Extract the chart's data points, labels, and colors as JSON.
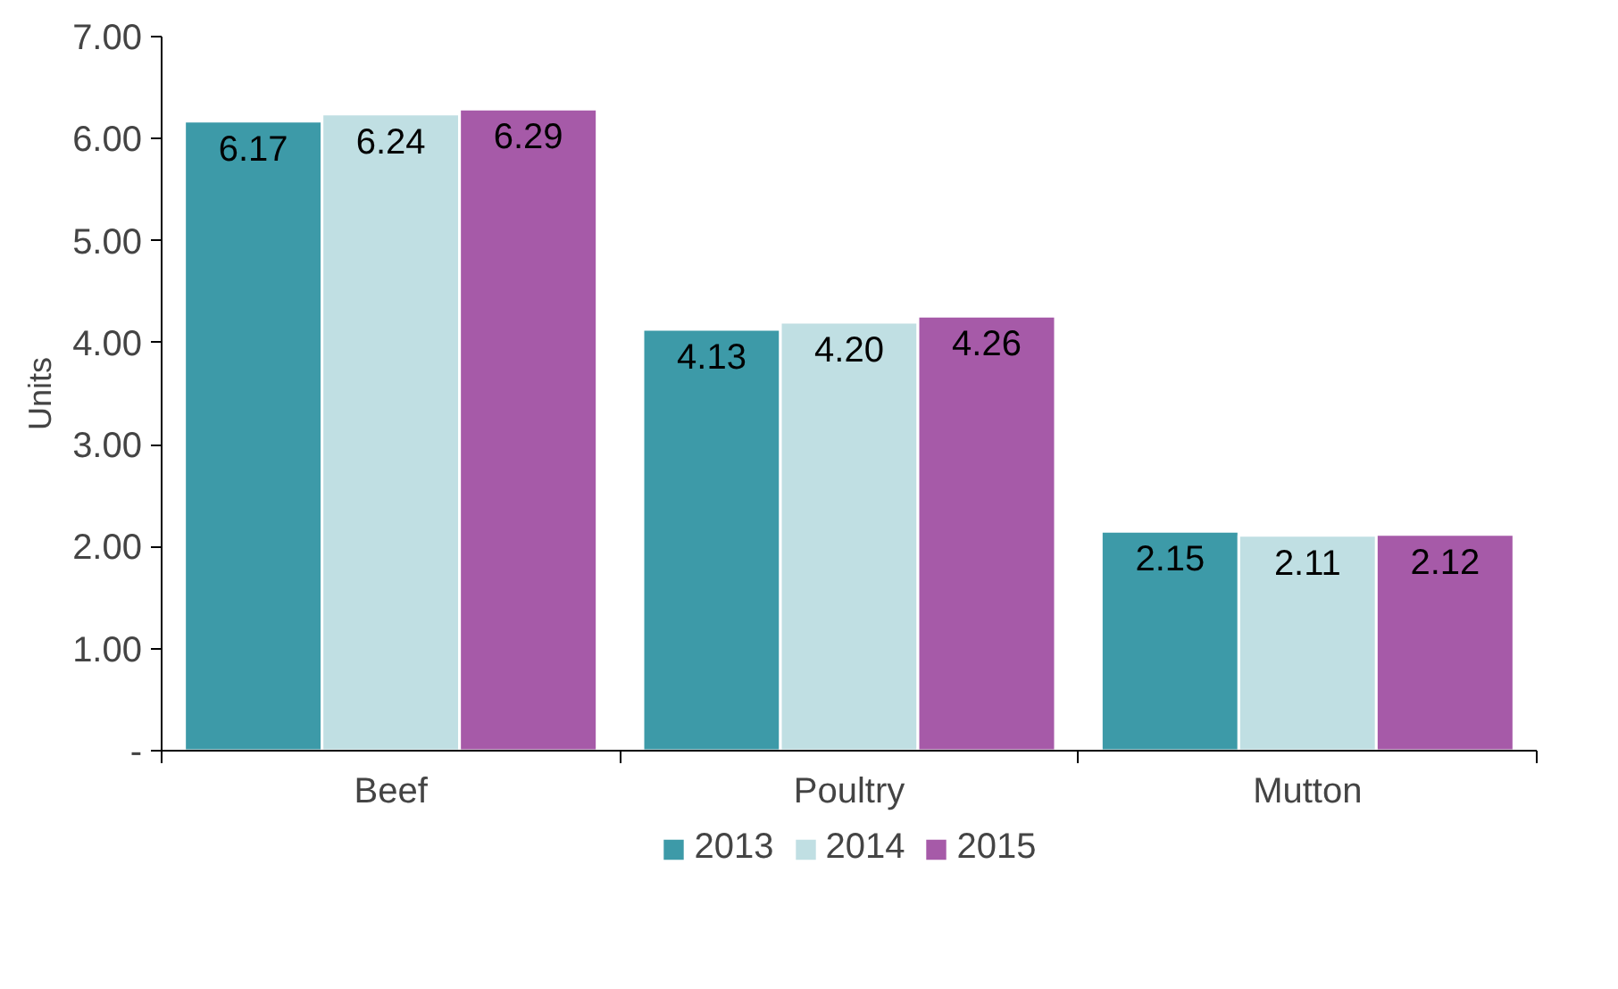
{
  "chart_data": {
    "type": "bar",
    "ylabel": "Units",
    "categories": [
      "Beef",
      "Poultry",
      "Mutton"
    ],
    "series": [
      {
        "name": "2013",
        "color": "#3d9aa8",
        "values": [
          6.17,
          4.13,
          2.15
        ],
        "value_labels": [
          "6.17",
          "4.13",
          "2.15"
        ]
      },
      {
        "name": "2014",
        "color": "#c0dfe3",
        "values": [
          6.24,
          4.2,
          2.11
        ],
        "value_labels": [
          "6.24",
          "4.20",
          "2.11"
        ]
      },
      {
        "name": "2015",
        "color": "#a65aa8",
        "values": [
          6.29,
          4.26,
          2.12
        ],
        "value_labels": [
          "6.29",
          "4.26",
          "2.12"
        ]
      }
    ],
    "ylim": [
      0,
      7
    ],
    "yticks": [
      {
        "value": 0,
        "label": "-"
      },
      {
        "value": 1,
        "label": "1.00"
      },
      {
        "value": 2,
        "label": "2.00"
      },
      {
        "value": 3,
        "label": "3.00"
      },
      {
        "value": 4,
        "label": "4.00"
      },
      {
        "value": 5,
        "label": "5.00"
      },
      {
        "value": 6,
        "label": "6.00"
      },
      {
        "value": 7,
        "label": "7.00"
      }
    ],
    "grid": false,
    "legend": "bottom"
  }
}
